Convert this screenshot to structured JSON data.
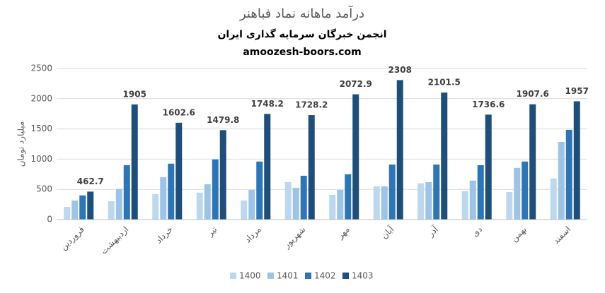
{
  "chart_data": {
    "type": "bar",
    "title": "درآمد ماهانه نماد فباهنر",
    "subtitle": [
      "انجمن خبرگان سرمایه گذاری ایران",
      "amoozesh-boors.com"
    ],
    "y_label": "میلیارد تومان",
    "categories": [
      "فروردین",
      "اردیبهشت",
      "خرداد",
      "تیر",
      "مرداد",
      "شهریور",
      "مهر",
      "آبان",
      "آذر",
      "دی",
      "بهمن",
      "اسفند"
    ],
    "series": [
      {
        "name": "1400",
        "color": "#bdd7ee",
        "values": [
          210,
          305,
          420,
          445,
          315,
          620,
          410,
          550,
          600,
          470,
          455,
          680
        ]
      },
      {
        "name": "1401",
        "color": "#9dc3e6",
        "values": [
          315,
          505,
          700,
          585,
          490,
          525,
          490,
          550,
          620,
          645,
          855,
          1285
        ]
      },
      {
        "name": "1402",
        "color": "#2e75b6",
        "values": [
          400,
          900,
          925,
          995,
          960,
          725,
          750,
          910,
          910,
          900,
          960,
          1485
        ]
      },
      {
        "name": "1403",
        "color": "#1f4e79",
        "values": [
          462.7,
          1905,
          1602.6,
          1479.8,
          1748.2,
          1728.2,
          2072.9,
          2308,
          2101.5,
          1736.6,
          1907.6,
          1957
        ],
        "show_labels": true
      }
    ],
    "ylim": [
      0,
      2500
    ],
    "yticks": [
      0,
      500,
      1000,
      1500,
      2000,
      2500
    ],
    "grid": true,
    "legend": "bottom"
  }
}
